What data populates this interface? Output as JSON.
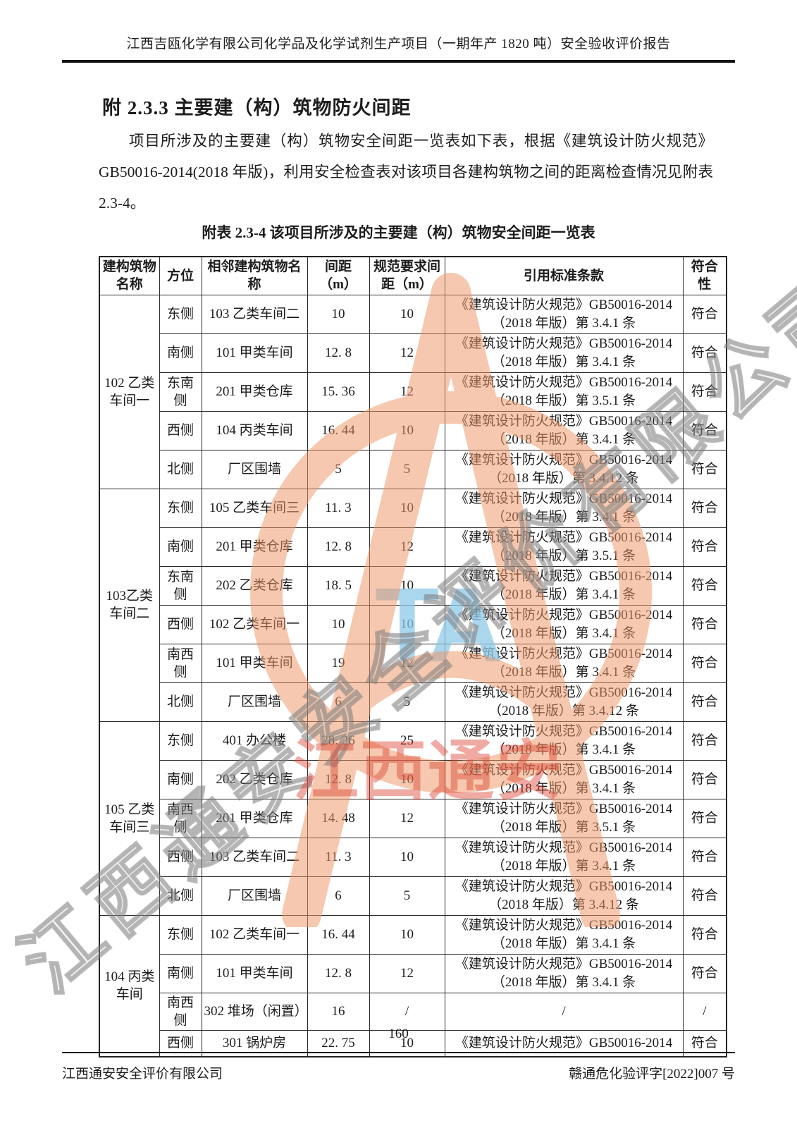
{
  "page": {
    "header_title": "江西吉瓯化学有限公司化学品及化学试剂生产项目（一期年产 1820 吨）安全验收评价报告",
    "section_heading": "附 2.3.3 主要建（构）筑物防火间距",
    "paragraph": "项目所涉及的主要建（构）筑物安全间距一览表如下表，根据《建筑设计防火规范》GB50016-2014(2018 年版)，利用安全检查表对该项目各建构筑物之间的距离检查情况见附表 2.3-4。",
    "page_number": "160",
    "footer_left": "江西通安安全评价有限公司",
    "footer_right": "赣通危化验评字[2022]007 号"
  },
  "table": {
    "title": "附表 2.3-4  该项目所涉及的主要建（构）筑物安全间距一览表",
    "headers": [
      "建构筑物名称",
      "方位",
      "相邻建构筑物名称",
      "间距（m）",
      "规范要求间距（m）",
      "引用标准条款",
      "符合性"
    ],
    "groups": [
      {
        "name": "102 乙类车间一",
        "rows": [
          {
            "direction": "东侧",
            "neighbor": "103 乙类车间二",
            "distance": "10",
            "required": "10",
            "standard": "《建筑设计防火规范》GB50016-2014（2018 年版）第 3.4.1 条",
            "compliance": "符合"
          },
          {
            "direction": "南侧",
            "neighbor": "101 甲类车间",
            "distance": "12. 8",
            "required": "12",
            "standard": "《建筑设计防火规范》GB50016-2014（2018 年版）第 3.4.1 条",
            "compliance": "符合"
          },
          {
            "direction": "东南侧",
            "neighbor": "201 甲类仓库",
            "distance": "15. 36",
            "required": "12",
            "standard": "《建筑设计防火规范》GB50016-2014（2018 年版）第 3.5.1 条",
            "compliance": "符合"
          },
          {
            "direction": "西侧",
            "neighbor": "104 丙类车间",
            "distance": "16. 44",
            "required": "10",
            "standard": "《建筑设计防火规范》GB50016-2014（2018 年版）第 3.4.1 条",
            "compliance": "符合"
          },
          {
            "direction": "北侧",
            "neighbor": "厂区围墙",
            "distance": "5",
            "required": "5",
            "standard": "《建筑设计防火规范》GB50016-2014（2018 年版）第 3.4.12 条",
            "compliance": "符合"
          }
        ]
      },
      {
        "name": "103乙类车间二",
        "rows": [
          {
            "direction": "东侧",
            "neighbor": "105 乙类车间三",
            "distance": "11. 3",
            "required": "10",
            "standard": "《建筑设计防火规范》GB50016-2014（2018 年版）第 3.4.1 条",
            "compliance": "符合"
          },
          {
            "direction": "南侧",
            "neighbor": "201 甲类仓库",
            "distance": "12. 8",
            "required": "12",
            "standard": "《建筑设计防火规范》GB50016-2014（2018 年版）第 3.5.1 条",
            "compliance": "符合"
          },
          {
            "direction": "东南侧",
            "neighbor": "202 乙类仓库",
            "distance": "18. 5",
            "required": "10",
            "standard": "《建筑设计防火规范》GB50016-2014（2018 年版）第 3.4.1 条",
            "compliance": "符合"
          },
          {
            "direction": "西侧",
            "neighbor": "102 乙类车间一",
            "distance": "10",
            "required": "10",
            "standard": "《建筑设计防火规范》GB50016-2014（2018 年版）第 3.4.1 条",
            "compliance": "符合"
          },
          {
            "direction": "南西侧",
            "neighbor": "101 甲类车间",
            "distance": "19",
            "required": "12",
            "standard": "《建筑设计防火规范》GB50016-2014（2018 年版）第 3.4.1 条",
            "compliance": "符合"
          },
          {
            "direction": "北侧",
            "neighbor": "厂区围墙",
            "distance": "6",
            "required": "5",
            "standard": "《建筑设计防火规范》GB50016-2014（2018 年版）第 3.4.12 条",
            "compliance": "符合"
          }
        ]
      },
      {
        "name": "105 乙类车间三",
        "rows": [
          {
            "direction": "东侧",
            "neighbor": "401 办公楼",
            "distance": "28. 26",
            "required": "25",
            "standard": "《建筑设计防火规范》GB50016-2014（2018 年版）第 3.4.1 条",
            "compliance": "符合"
          },
          {
            "direction": "南侧",
            "neighbor": "202 乙类仓库",
            "distance": "12. 8",
            "required": "10",
            "standard": "《建筑设计防火规范》GB50016-2014（2018 年版）第 3.4.1 条",
            "compliance": "符合"
          },
          {
            "direction": "南西侧",
            "neighbor": "201 甲类仓库",
            "distance": "14. 48",
            "required": "12",
            "standard": "《建筑设计防火规范》GB50016-2014（2018 年版）第 3.5.1 条",
            "compliance": "符合"
          },
          {
            "direction": "西侧",
            "neighbor": "103 乙类车间二",
            "distance": "11. 3",
            "required": "10",
            "standard": "《建筑设计防火规范》GB50016-2014（2018 年版）第 3.4.1 条",
            "compliance": "符合"
          },
          {
            "direction": "北侧",
            "neighbor": "厂区围墙",
            "distance": "6",
            "required": "5",
            "standard": "《建筑设计防火规范》GB50016-2014（2018 年版）第 3.4.12 条",
            "compliance": "符合"
          }
        ]
      },
      {
        "name": "104 丙类车间",
        "rows": [
          {
            "direction": "东侧",
            "neighbor": "102 乙类车间一",
            "distance": "16. 44",
            "required": "10",
            "standard": "《建筑设计防火规范》GB50016-2014（2018 年版）第 3.4.1 条",
            "compliance": "符合"
          },
          {
            "direction": "南侧",
            "neighbor": "101 甲类车间",
            "distance": "12. 8",
            "required": "12",
            "standard": "《建筑设计防火规范》GB50016-2014（2018 年版）第 3.4.1 条",
            "compliance": "符合"
          },
          {
            "direction": "南西侧",
            "neighbor": "302 堆场（闲置）",
            "distance": "16",
            "required": "/",
            "standard": "/",
            "compliance": "/"
          },
          {
            "direction": "西侧",
            "neighbor": "301 锅炉房",
            "distance": "22. 75",
            "required": "10",
            "standard": "《建筑设计防火规范》GB50016-2014",
            "compliance": "符合"
          }
        ]
      }
    ]
  },
  "watermark": {
    "red_text": "江西通安",
    "diagonal_text": "江西通安安全评价有限公司",
    "blue_text": "TA",
    "orange_color": "#ee9668",
    "red_color": "#dc4434",
    "blue_color": "#8dc8e8",
    "gray_color": "#767676"
  }
}
